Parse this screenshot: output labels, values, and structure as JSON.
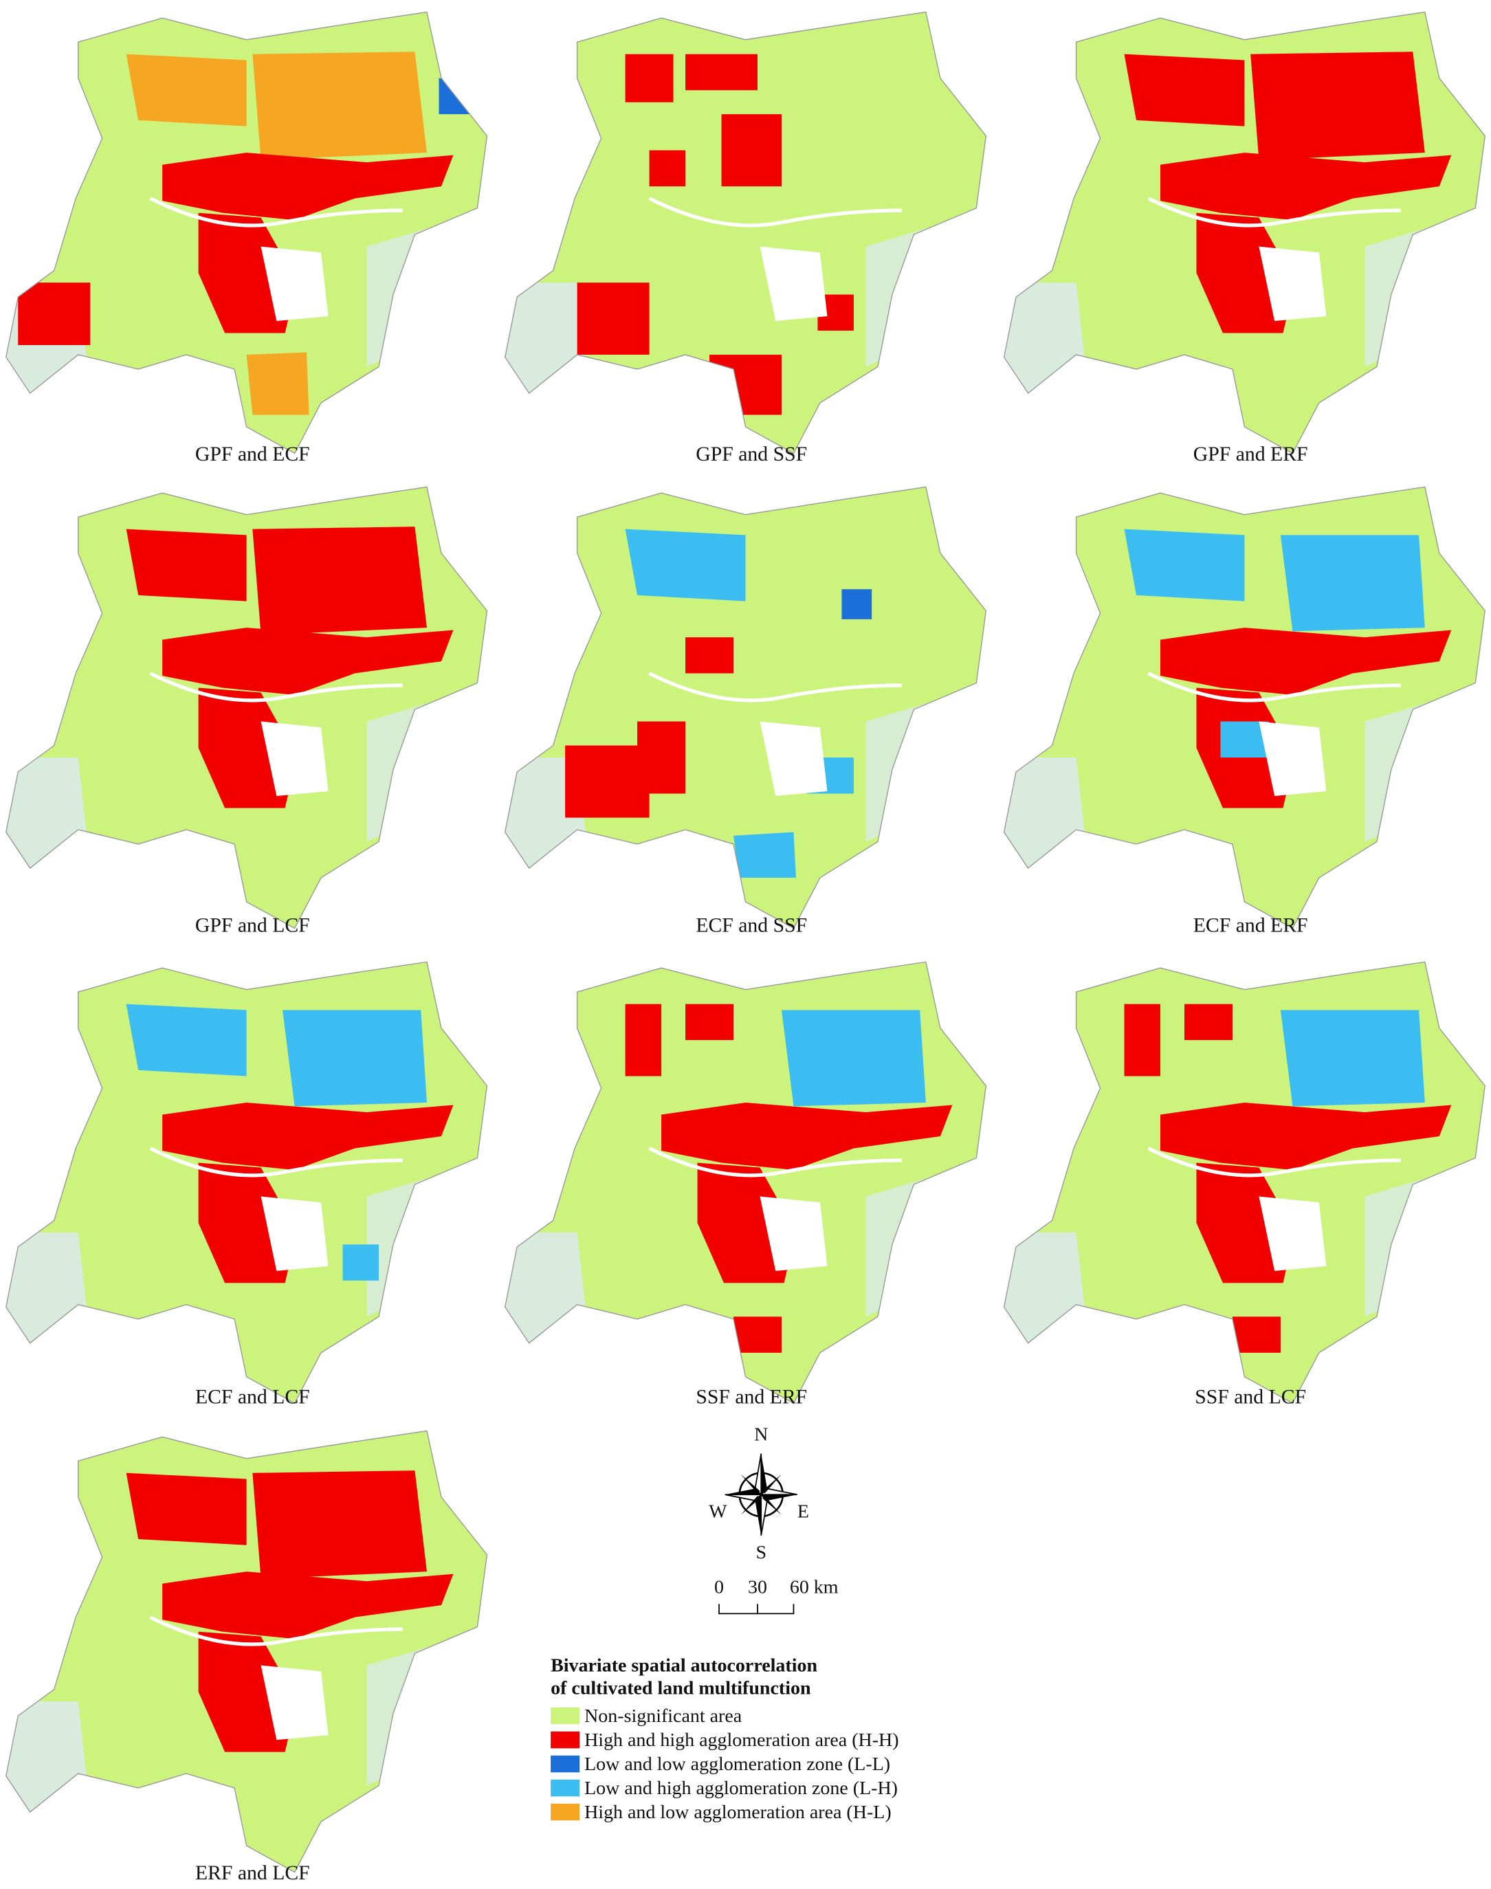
{
  "panels": [
    {
      "caption": "GPF and ECF"
    },
    {
      "caption": "GPF and SSF"
    },
    {
      "caption": "GPF and ERF"
    },
    {
      "caption": "GPF and LCF"
    },
    {
      "caption": "ECF and SSF"
    },
    {
      "caption": "ECF and ERF"
    },
    {
      "caption": "ECF and LCF"
    },
    {
      "caption": "SSF and ERF"
    },
    {
      "caption": "SSF and LCF"
    },
    {
      "caption": "ERF and LCF"
    }
  ],
  "compass": {
    "north": "N",
    "south": "S",
    "west": "W",
    "east": "E"
  },
  "scale_bar": {
    "labels": [
      "0",
      "30",
      "60 km"
    ]
  },
  "legend": {
    "title_lines": [
      "Bivariate spatial autocorrelation",
      "of cultivated land multifunction"
    ],
    "items": [
      {
        "label": "Non-significant area",
        "color": "#ccf47c"
      },
      {
        "label": "High and high agglomeration area (H-H)",
        "color": "#f20000"
      },
      {
        "label": "Low and low agglomeration zone (L-L)",
        "color": "#1c6ed8"
      },
      {
        "label": "Low and high agglomeration zone (L-H)",
        "color": "#3cbdf2"
      },
      {
        "label": "High and low agglomeration area (H-L)",
        "color": "#f5a623"
      }
    ]
  }
}
